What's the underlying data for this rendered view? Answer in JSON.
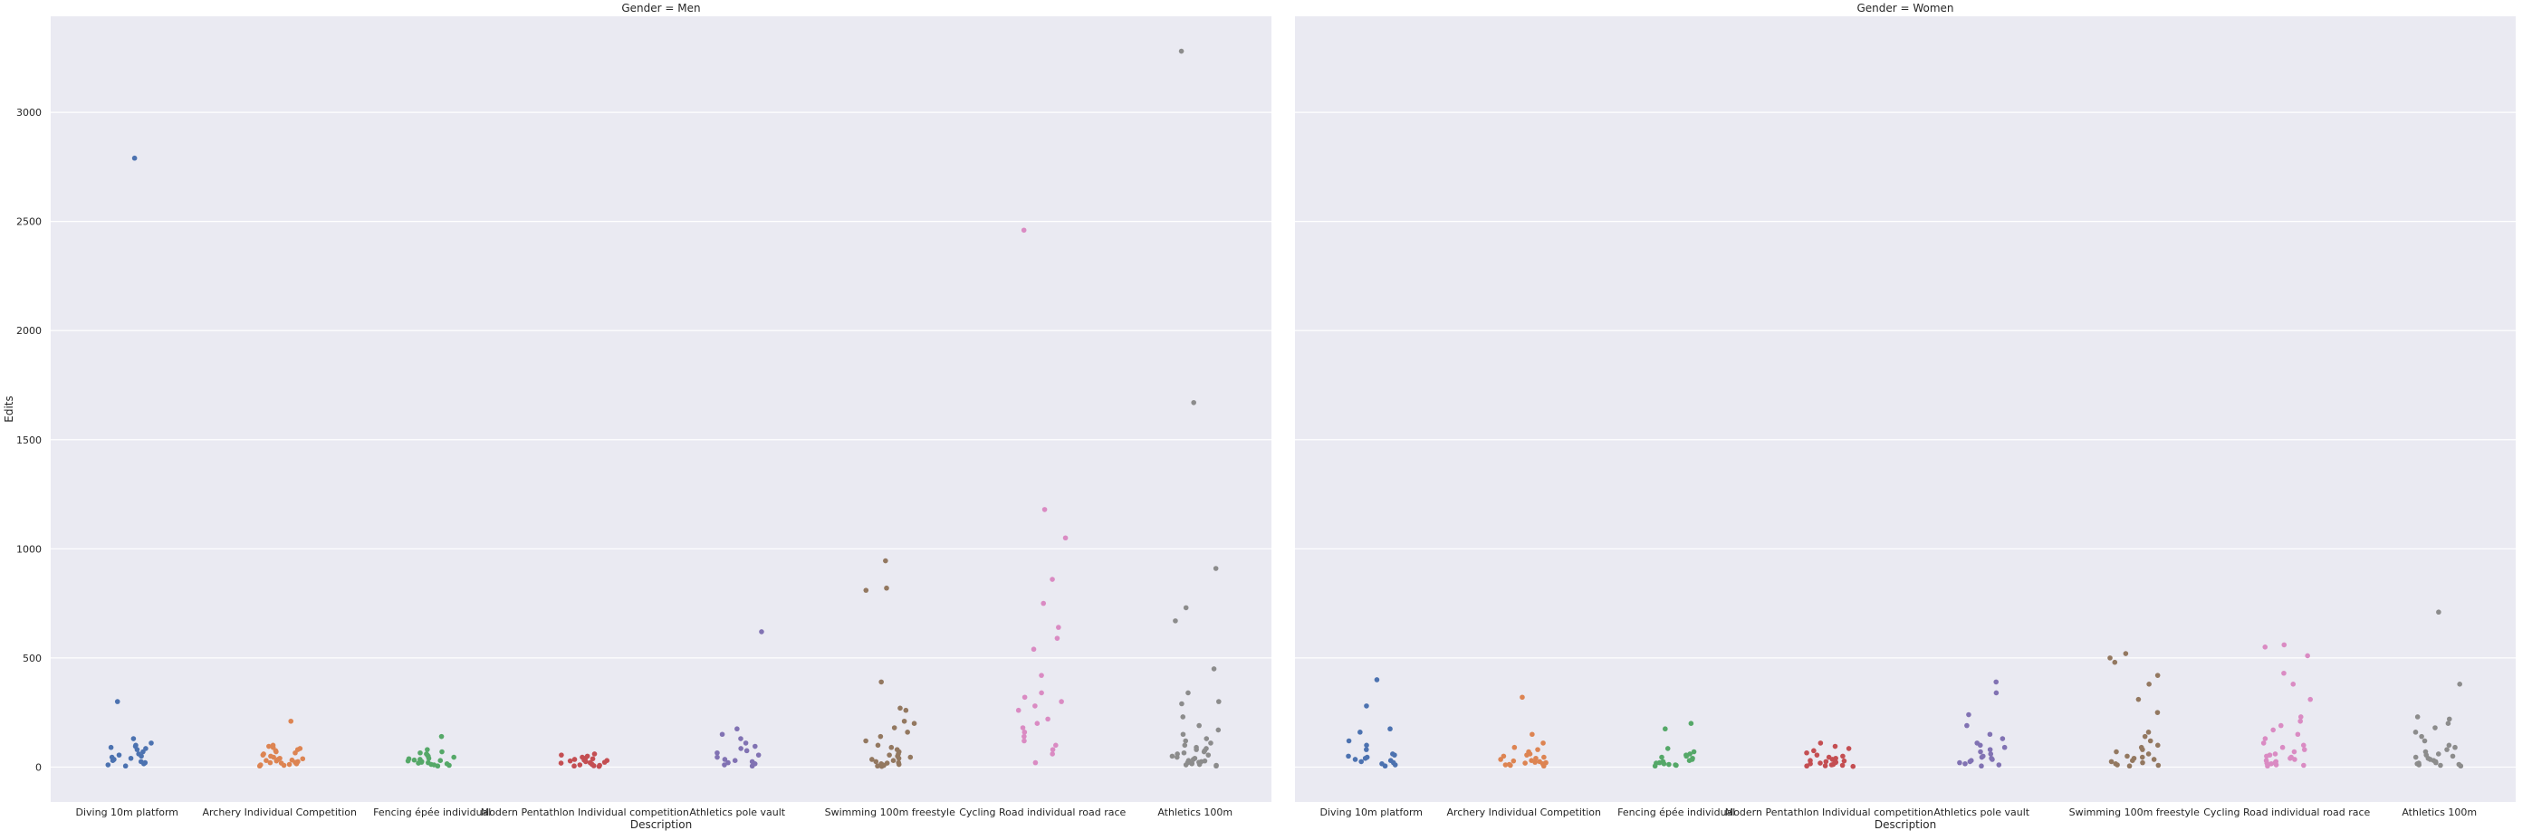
{
  "chart_data": {
    "type": "scatter",
    "kind": "strip plot (faceted)",
    "xlabel": "Description",
    "ylabel": "Edits",
    "ylim": [
      -160,
      3440
    ],
    "yticks": [
      0,
      500,
      1000,
      1500,
      2000,
      2500,
      3000
    ],
    "grid": true,
    "background": "#eaeaf2",
    "categories": [
      "Diving 10m platform",
      "Archery Individual Competition",
      "Fencing épée individual",
      "Modern Pentathlon Individual competition",
      "Athletics pole vault",
      "Swimming 100m freestyle",
      "Cycling Road individual road race",
      "Athletics 100m"
    ],
    "colors": [
      "#4c72b0",
      "#dd8452",
      "#55a868",
      "#c44e52",
      "#8172b3",
      "#937860",
      "#da8bc3",
      "#8c8c8c"
    ],
    "facets": [
      {
        "title": "Gender = Men",
        "series": [
          {
            "values": [
              2790,
              300,
              130,
              110,
              100,
              95,
              90,
              85,
              80,
              70,
              60,
              55,
              50,
              45,
              40,
              35,
              30,
              25,
              20,
              15,
              10,
              5
            ]
          },
          {
            "values": [
              210,
              100,
              95,
              90,
              85,
              80,
              75,
              70,
              65,
              60,
              55,
              50,
              45,
              40,
              38,
              35,
              32,
              30,
              28,
              25,
              22,
              20,
              18,
              15,
              12,
              10,
              8,
              5
            ]
          },
          {
            "values": [
              140,
              80,
              70,
              65,
              60,
              55,
              50,
              45,
              40,
              38,
              35,
              32,
              30,
              28,
              25,
              22,
              20,
              18,
              15,
              12,
              10,
              8,
              5
            ]
          },
          {
            "values": [
              60,
              55,
              50,
              45,
              40,
              38,
              35,
              32,
              30,
              28,
              25,
              22,
              20,
              18,
              15,
              12,
              10,
              8,
              6,
              5,
              3
            ]
          },
          {
            "values": [
              620,
              175,
              150,
              130,
              110,
              95,
              85,
              75,
              65,
              55,
              45,
              35,
              30,
              25,
              20,
              15,
              10,
              5
            ]
          },
          {
            "values": [
              945,
              820,
              810,
              390,
              270,
              260,
              210,
              200,
              180,
              160,
              140,
              120,
              100,
              90,
              80,
              70,
              60,
              55,
              50,
              45,
              40,
              35,
              30,
              25,
              20,
              18,
              15,
              12,
              10,
              8,
              5,
              3
            ]
          },
          {
            "values": [
              2460,
              1180,
              1050,
              860,
              750,
              640,
              590,
              540,
              420,
              340,
              320,
              300,
              280,
              260,
              220,
              200,
              180,
              160,
              140,
              120,
              100,
              80,
              60,
              20
            ]
          },
          {
            "values": [
              3280,
              1670,
              910,
              730,
              670,
              450,
              340,
              300,
              290,
              230,
              190,
              170,
              150,
              130,
              120,
              110,
              100,
              90,
              85,
              80,
              75,
              70,
              65,
              60,
              55,
              50,
              45,
              40,
              35,
              30,
              28,
              25,
              22,
              20,
              18,
              15,
              12,
              10,
              8,
              5
            ]
          }
        ]
      },
      {
        "title": "Gender = Women",
        "series": [
          {
            "values": [
              400,
              280,
              175,
              160,
              120,
              100,
              80,
              60,
              55,
              50,
              45,
              40,
              35,
              30,
              25,
              20,
              15,
              10,
              5
            ]
          },
          {
            "values": [
              320,
              150,
              110,
              90,
              80,
              70,
              60,
              55,
              50,
              45,
              40,
              35,
              30,
              28,
              25,
              22,
              20,
              18,
              15,
              12,
              10,
              8,
              5
            ]
          },
          {
            "values": [
              200,
              175,
              85,
              70,
              60,
              55,
              50,
              45,
              40,
              35,
              30,
              25,
              20,
              18,
              15,
              12,
              10,
              8,
              5
            ]
          },
          {
            "values": [
              110,
              95,
              85,
              75,
              65,
              55,
              50,
              45,
              40,
              35,
              30,
              28,
              25,
              22,
              20,
              18,
              15,
              12,
              10,
              8,
              6,
              5,
              3
            ]
          },
          {
            "values": [
              390,
              340,
              240,
              190,
              150,
              130,
              110,
              100,
              90,
              80,
              70,
              60,
              50,
              45,
              40,
              35,
              30,
              25,
              20,
              15,
              10,
              5
            ]
          },
          {
            "values": [
              520,
              500,
              480,
              420,
              380,
              310,
              250,
              160,
              140,
              120,
              100,
              90,
              80,
              70,
              60,
              50,
              45,
              40,
              35,
              30,
              25,
              20,
              15,
              10,
              8,
              5
            ]
          },
          {
            "values": [
              560,
              550,
              510,
              430,
              380,
              310,
              230,
              210,
              190,
              170,
              150,
              130,
              110,
              100,
              90,
              80,
              70,
              60,
              55,
              50,
              45,
              40,
              35,
              30,
              25,
              20,
              18,
              15,
              12,
              10,
              8,
              5
            ]
          },
          {
            "values": [
              710,
              380,
              230,
              220,
              200,
              180,
              160,
              140,
              120,
              100,
              90,
              80,
              70,
              60,
              55,
              50,
              45,
              40,
              35,
              30,
              25,
              20,
              18,
              15,
              12,
              10,
              8,
              5
            ]
          }
        ]
      }
    ]
  }
}
